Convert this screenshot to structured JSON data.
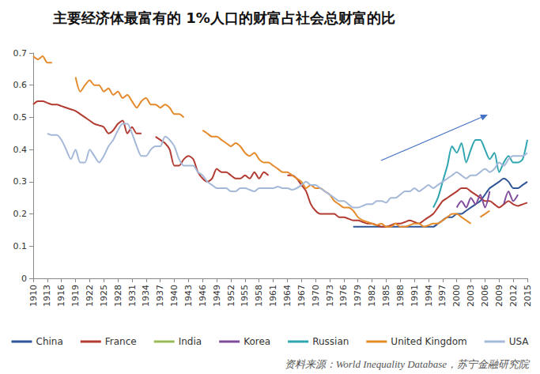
{
  "chart_data": {
    "type": "line",
    "title": "主要经济体最富有的 1%人口的财富占社会总财富的比",
    "annotations": [
      {
        "text": "资料来源：World Inequality Database，苏宁金融研究院"
      }
    ],
    "x": [
      1910,
      1911,
      1912,
      1913,
      1914,
      1915,
      1916,
      1917,
      1918,
      1919,
      1920,
      1921,
      1922,
      1923,
      1924,
      1925,
      1926,
      1927,
      1928,
      1929,
      1930,
      1931,
      1932,
      1933,
      1934,
      1935,
      1936,
      1937,
      1938,
      1939,
      1940,
      1941,
      1942,
      1943,
      1944,
      1945,
      1946,
      1947,
      1948,
      1949,
      1950,
      1951,
      1952,
      1953,
      1954,
      1955,
      1956,
      1957,
      1958,
      1959,
      1960,
      1961,
      1962,
      1963,
      1964,
      1965,
      1966,
      1967,
      1968,
      1969,
      1970,
      1971,
      1972,
      1973,
      1974,
      1975,
      1976,
      1977,
      1978,
      1979,
      1980,
      1981,
      1982,
      1983,
      1984,
      1985,
      1986,
      1987,
      1988,
      1989,
      1990,
      1991,
      1992,
      1993,
      1994,
      1995,
      1996,
      1997,
      1998,
      1999,
      2000,
      2001,
      2002,
      2003,
      2004,
      2005,
      2006,
      2007,
      2008,
      2009,
      2010,
      2011,
      2012,
      2013,
      2014,
      2015
    ],
    "xlim": [
      1910,
      2015
    ],
    "xticks": [
      1910,
      1913,
      1916,
      1919,
      1922,
      1925,
      1928,
      1931,
      1934,
      1937,
      1940,
      1943,
      1946,
      1949,
      1952,
      1955,
      1958,
      1961,
      1964,
      1967,
      1970,
      1973,
      1976,
      1979,
      1982,
      1985,
      1988,
      1991,
      1994,
      1997,
      2000,
      2003,
      2006,
      2009,
      2012,
      2015
    ],
    "ylim": [
      0,
      0.7
    ],
    "yticks": [
      0,
      0.1,
      0.2,
      0.3,
      0.4,
      0.5,
      0.6,
      0.7
    ],
    "grid": false,
    "legend": "bottom",
    "series": [
      {
        "name": "China",
        "color": "#2F5597",
        "values": [
          null,
          null,
          null,
          null,
          null,
          null,
          null,
          null,
          null,
          null,
          null,
          null,
          null,
          null,
          null,
          null,
          null,
          null,
          null,
          null,
          null,
          null,
          null,
          null,
          null,
          null,
          null,
          null,
          null,
          null,
          null,
          null,
          null,
          null,
          null,
          null,
          null,
          null,
          null,
          null,
          null,
          null,
          null,
          null,
          null,
          null,
          null,
          null,
          null,
          null,
          null,
          null,
          null,
          null,
          null,
          null,
          null,
          null,
          null,
          null,
          null,
          null,
          null,
          null,
          null,
          null,
          null,
          null,
          0.16,
          0.16,
          0.16,
          0.16,
          0.16,
          0.16,
          0.16,
          0.16,
          0.16,
          0.16,
          0.16,
          0.16,
          0.16,
          0.16,
          0.16,
          0.16,
          0.16,
          0.16,
          0.17,
          0.18,
          0.19,
          0.19,
          0.2,
          0.2,
          0.21,
          0.22,
          0.23,
          0.24,
          0.26,
          0.28,
          0.29,
          0.3,
          0.31,
          0.3,
          0.28,
          0.28,
          0.29,
          0.3
        ]
      },
      {
        "name": "France",
        "color": "#B23B31",
        "values": [
          0.54,
          0.55,
          0.55,
          0.545,
          0.54,
          0.54,
          0.535,
          0.53,
          0.525,
          0.52,
          0.51,
          0.5,
          0.49,
          0.48,
          0.475,
          0.47,
          0.45,
          0.46,
          0.48,
          0.49,
          0.45,
          0.47,
          0.45,
          0.45,
          null,
          null,
          0.44,
          0.43,
          0.42,
          0.4,
          0.35,
          0.35,
          0.37,
          0.38,
          0.37,
          0.33,
          0.31,
          0.3,
          0.31,
          0.34,
          0.33,
          0.33,
          0.32,
          0.31,
          0.31,
          0.32,
          0.31,
          0.33,
          0.31,
          0.33,
          0.32,
          null,
          null,
          null,
          0.32,
          0.32,
          0.31,
          0.29,
          0.27,
          0.23,
          0.21,
          0.2,
          0.2,
          0.2,
          0.2,
          0.19,
          0.19,
          0.185,
          0.18,
          0.18,
          0.175,
          0.17,
          0.17,
          0.165,
          0.16,
          0.16,
          0.165,
          0.17,
          0.17,
          0.175,
          0.18,
          0.175,
          0.17,
          0.18,
          0.19,
          0.2,
          0.22,
          0.24,
          0.25,
          0.26,
          0.27,
          0.28,
          0.28,
          0.27,
          0.26,
          0.25,
          0.24,
          0.24,
          0.23,
          0.22,
          0.23,
          0.24,
          0.23,
          0.225,
          0.23,
          0.235
        ]
      },
      {
        "name": "India",
        "color": "#9BBB59",
        "values": [
          null,
          null,
          null,
          null,
          null,
          null,
          null,
          null,
          null,
          null,
          null,
          null,
          null,
          null,
          null,
          null,
          null,
          null,
          null,
          null,
          null,
          null,
          null,
          null,
          null,
          null,
          null,
          null,
          null,
          null,
          null,
          null,
          null,
          null,
          null,
          null,
          null,
          null,
          null,
          null,
          null,
          null,
          null,
          null,
          null,
          null,
          null,
          null,
          null,
          null,
          null,
          null,
          null,
          null,
          null,
          null,
          null,
          null,
          null,
          null,
          null,
          null,
          null,
          null,
          null,
          null,
          null,
          null,
          null,
          null,
          null,
          null,
          null,
          null,
          null,
          null,
          null,
          null,
          null,
          null,
          null,
          null,
          null,
          null,
          null,
          null,
          null,
          null,
          null,
          null,
          null,
          null,
          null,
          null,
          null,
          null,
          null,
          null,
          null,
          null,
          null,
          null,
          null,
          null,
          null,
          null
        ]
      },
      {
        "name": "Korea",
        "color": "#7F4B9C",
        "values": [
          null,
          null,
          null,
          null,
          null,
          null,
          null,
          null,
          null,
          null,
          null,
          null,
          null,
          null,
          null,
          null,
          null,
          null,
          null,
          null,
          null,
          null,
          null,
          null,
          null,
          null,
          null,
          null,
          null,
          null,
          null,
          null,
          null,
          null,
          null,
          null,
          null,
          null,
          null,
          null,
          null,
          null,
          null,
          null,
          null,
          null,
          null,
          null,
          null,
          null,
          null,
          null,
          null,
          null,
          null,
          null,
          null,
          null,
          null,
          null,
          null,
          null,
          null,
          null,
          null,
          null,
          null,
          null,
          null,
          null,
          null,
          null,
          null,
          null,
          null,
          null,
          null,
          null,
          null,
          null,
          null,
          null,
          null,
          null,
          null,
          null,
          null,
          null,
          null,
          null,
          0.22,
          0.24,
          0.22,
          0.25,
          0.23,
          0.26,
          0.22,
          0.27,
          null,
          null,
          0.23,
          0.27,
          0.24,
          0.26,
          null,
          null
        ]
      },
      {
        "name": "Russian",
        "color": "#2FA5B0",
        "values": [
          null,
          null,
          null,
          null,
          null,
          null,
          null,
          null,
          null,
          null,
          null,
          null,
          null,
          null,
          null,
          null,
          null,
          null,
          null,
          null,
          null,
          null,
          null,
          null,
          null,
          null,
          null,
          null,
          null,
          null,
          null,
          null,
          null,
          null,
          null,
          null,
          null,
          null,
          null,
          null,
          null,
          null,
          null,
          null,
          null,
          null,
          null,
          null,
          null,
          null,
          null,
          null,
          null,
          null,
          null,
          null,
          null,
          null,
          null,
          null,
          null,
          null,
          null,
          null,
          null,
          null,
          null,
          null,
          null,
          null,
          null,
          null,
          null,
          null,
          null,
          null,
          null,
          null,
          null,
          null,
          null,
          null,
          null,
          null,
          null,
          0.22,
          0.25,
          0.3,
          0.35,
          0.41,
          0.39,
          0.42,
          0.36,
          0.4,
          0.43,
          0.43,
          0.4,
          0.37,
          0.39,
          0.33,
          0.36,
          0.38,
          0.36,
          0.36,
          0.37,
          0.43
        ]
      },
      {
        "name": "United Kingdom",
        "color": "#E48A2A",
        "values": [
          0.69,
          0.68,
          0.69,
          0.67,
          0.67,
          null,
          null,
          null,
          null,
          0.625,
          0.58,
          0.6,
          0.615,
          0.6,
          0.6,
          0.58,
          0.59,
          0.57,
          0.58,
          0.56,
          0.57,
          0.55,
          0.53,
          0.55,
          0.56,
          0.54,
          0.54,
          0.53,
          0.54,
          0.53,
          0.51,
          0.51,
          0.5,
          null,
          null,
          null,
          0.46,
          0.45,
          0.44,
          0.44,
          0.43,
          0.42,
          0.41,
          0.42,
          0.41,
          0.39,
          0.38,
          0.39,
          0.37,
          0.36,
          0.36,
          0.35,
          0.34,
          0.33,
          0.33,
          0.32,
          0.31,
          0.3,
          0.28,
          0.29,
          0.28,
          0.28,
          0.27,
          0.26,
          0.24,
          0.23,
          0.22,
          0.22,
          0.21,
          0.19,
          0.18,
          0.175,
          0.17,
          0.165,
          0.17,
          0.16,
          0.16,
          0.17,
          0.16,
          0.16,
          0.165,
          0.17,
          0.17,
          0.16,
          0.165,
          0.17,
          0.17,
          0.18,
          0.19,
          0.2,
          0.2,
          0.19,
          0.18,
          0.17,
          null,
          0.19,
          0.2,
          0.21,
          null,
          null,
          null,
          null,
          null,
          null,
          null,
          null
        ]
      },
      {
        "name": "USA",
        "color": "#A4B8D8",
        "values": [
          null,
          null,
          null,
          0.45,
          0.445,
          0.445,
          0.43,
          0.4,
          0.37,
          0.4,
          0.36,
          0.36,
          0.4,
          0.38,
          0.36,
          0.38,
          0.41,
          0.43,
          0.46,
          0.48,
          0.48,
          0.45,
          0.41,
          0.38,
          0.38,
          0.4,
          0.41,
          0.41,
          0.44,
          0.43,
          0.41,
          0.37,
          0.35,
          0.35,
          0.35,
          0.33,
          0.32,
          0.3,
          0.29,
          0.28,
          0.28,
          0.28,
          0.27,
          0.27,
          0.28,
          0.28,
          0.275,
          0.27,
          0.28,
          0.28,
          0.28,
          0.28,
          0.285,
          0.28,
          0.28,
          0.275,
          0.28,
          0.29,
          0.3,
          0.29,
          0.29,
          0.28,
          0.27,
          0.26,
          0.25,
          0.24,
          0.24,
          0.23,
          0.22,
          0.22,
          0.225,
          0.23,
          0.23,
          0.24,
          0.24,
          0.235,
          0.25,
          0.25,
          0.26,
          0.27,
          0.27,
          0.28,
          0.27,
          0.28,
          0.29,
          0.28,
          0.29,
          0.3,
          0.31,
          0.32,
          0.33,
          0.32,
          0.31,
          0.32,
          0.32,
          0.33,
          0.34,
          0.33,
          0.34,
          0.36,
          0.35,
          0.37,
          0.38,
          0.38,
          0.38,
          0.39
        ]
      }
    ]
  }
}
